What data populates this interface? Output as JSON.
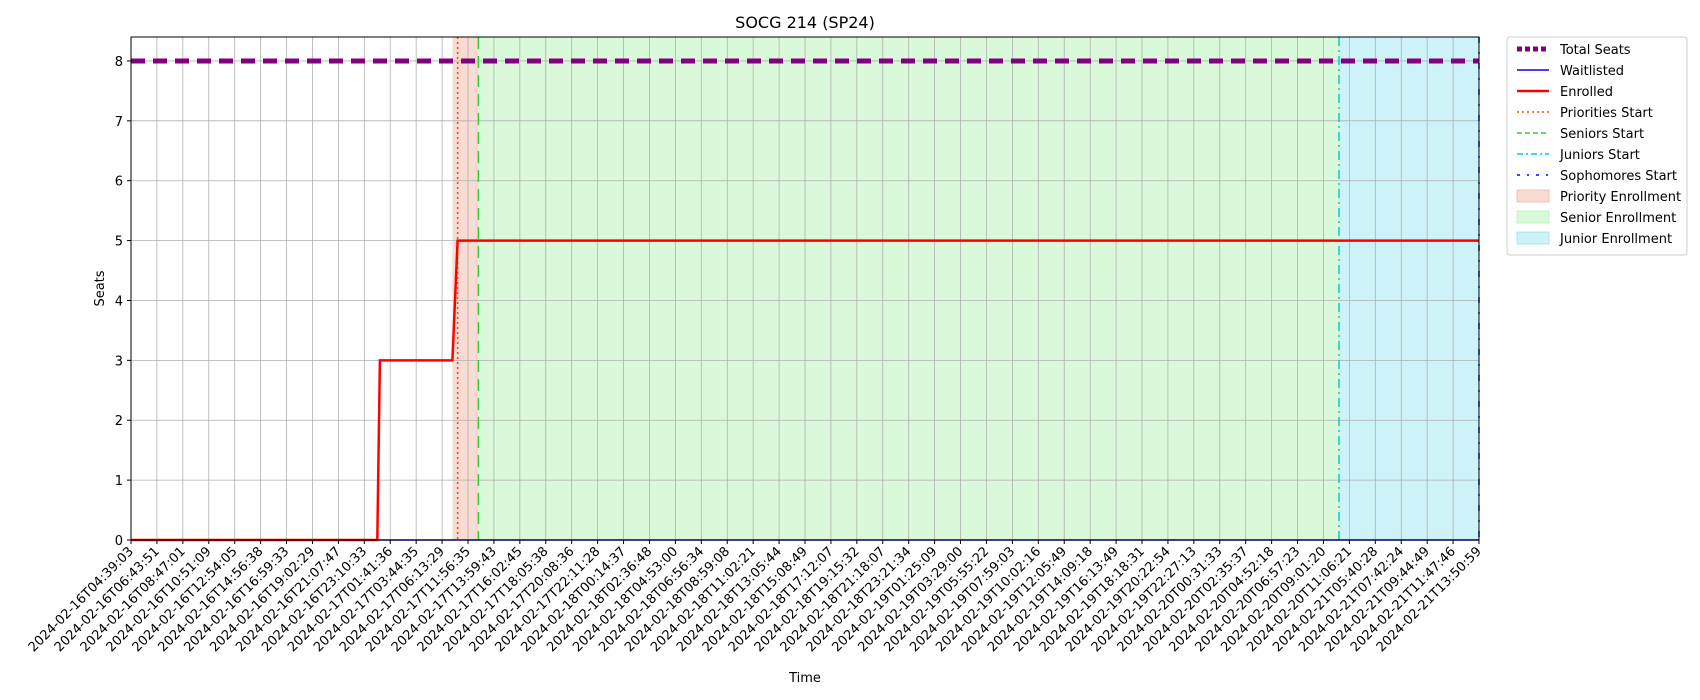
{
  "chart_data": {
    "type": "line",
    "title": "SOCG 214 (SP24)",
    "xlabel": "Time",
    "ylabel": "Seats",
    "ylim": [
      0,
      8.4
    ],
    "yticks": [
      0,
      1,
      2,
      3,
      4,
      5,
      6,
      7,
      8
    ],
    "grid": true,
    "legend_position": "outside-right",
    "x_ticks": [
      "2024-02-16T04:39:03",
      "2024-02-16T06:43:51",
      "2024-02-16T08:47:01",
      "2024-02-16T10:51:09",
      "2024-02-16T12:54:05",
      "2024-02-16T14:56:38",
      "2024-02-16T16:59:33",
      "2024-02-16T19:02:29",
      "2024-02-16T21:07:47",
      "2024-02-16T23:10:33",
      "2024-02-17T01:41:36",
      "2024-02-17T03:44:35",
      "2024-02-17T06:13:29",
      "2024-02-17T11:56:35",
      "2024-02-17T13:59:43",
      "2024-02-17T16:02:45",
      "2024-02-17T18:05:38",
      "2024-02-17T20:08:36",
      "2024-02-17T22:11:28",
      "2024-02-18T00:14:37",
      "2024-02-18T02:36:48",
      "2024-02-18T04:53:00",
      "2024-02-18T06:56:34",
      "2024-02-18T08:59:08",
      "2024-02-18T11:02:21",
      "2024-02-18T13:05:44",
      "2024-02-18T15:08:49",
      "2024-02-18T17:12:07",
      "2024-02-18T19:15:32",
      "2024-02-18T21:18:07",
      "2024-02-18T23:21:34",
      "2024-02-19T01:25:09",
      "2024-02-19T03:29:00",
      "2024-02-19T05:55:22",
      "2024-02-19T07:59:03",
      "2024-02-19T10:02:16",
      "2024-02-19T12:05:49",
      "2024-02-19T14:09:18",
      "2024-02-19T16:13:49",
      "2024-02-19T18:18:31",
      "2024-02-19T20:22:54",
      "2024-02-19T22:27:13",
      "2024-02-20T00:31:33",
      "2024-02-20T02:35:37",
      "2024-02-20T04:52:18",
      "2024-02-20T06:57:23",
      "2024-02-20T09:01:20",
      "2024-02-20T11:06:21",
      "2024-02-21T05:40:28",
      "2024-02-21T07:42:24",
      "2024-02-21T09:44:49",
      "2024-02-21T11:47:46",
      "2024-02-21T13:50:59"
    ],
    "series": [
      {
        "name": "Total Seats",
        "style": "dashed",
        "color": "#800080",
        "points": [
          [
            0,
            8
          ],
          [
            52,
            8
          ]
        ]
      },
      {
        "name": "Waitlisted",
        "style": "solid",
        "color": "#0000ff",
        "points": [
          [
            0,
            0
          ],
          [
            52,
            0
          ]
        ]
      },
      {
        "name": "Enrolled",
        "style": "solid",
        "color": "#ff0000",
        "points": [
          [
            0,
            0
          ],
          [
            9.5,
            0
          ],
          [
            9.6,
            3
          ],
          [
            12.4,
            3
          ],
          [
            12.6,
            5
          ],
          [
            52,
            5
          ]
        ]
      }
    ],
    "markers": [
      {
        "name": "Priorities Start",
        "style": "dotted",
        "color": "#ff4500",
        "x": 12.6
      },
      {
        "name": "Seniors Start",
        "style": "dashed",
        "color": "#32cd32",
        "x": 13.4
      },
      {
        "name": "Juniors Start",
        "style": "dashdot",
        "color": "#00ced1",
        "x": 46.6
      },
      {
        "name": "Sophomores Start",
        "style": "loosedashdot",
        "color": "#0000ff",
        "x": 52.0
      }
    ],
    "spans": [
      {
        "name": "Priority Enrollment",
        "color": "#e9967a",
        "x_start": 12.4,
        "x_end": 13.4
      },
      {
        "name": "Senior Enrollment",
        "color": "#90ee90",
        "x_start": 13.4,
        "x_end": 46.6
      },
      {
        "name": "Junior Enrollment",
        "color": "#66d9e8",
        "x_start": 46.6,
        "x_end": 52.0
      }
    ]
  }
}
